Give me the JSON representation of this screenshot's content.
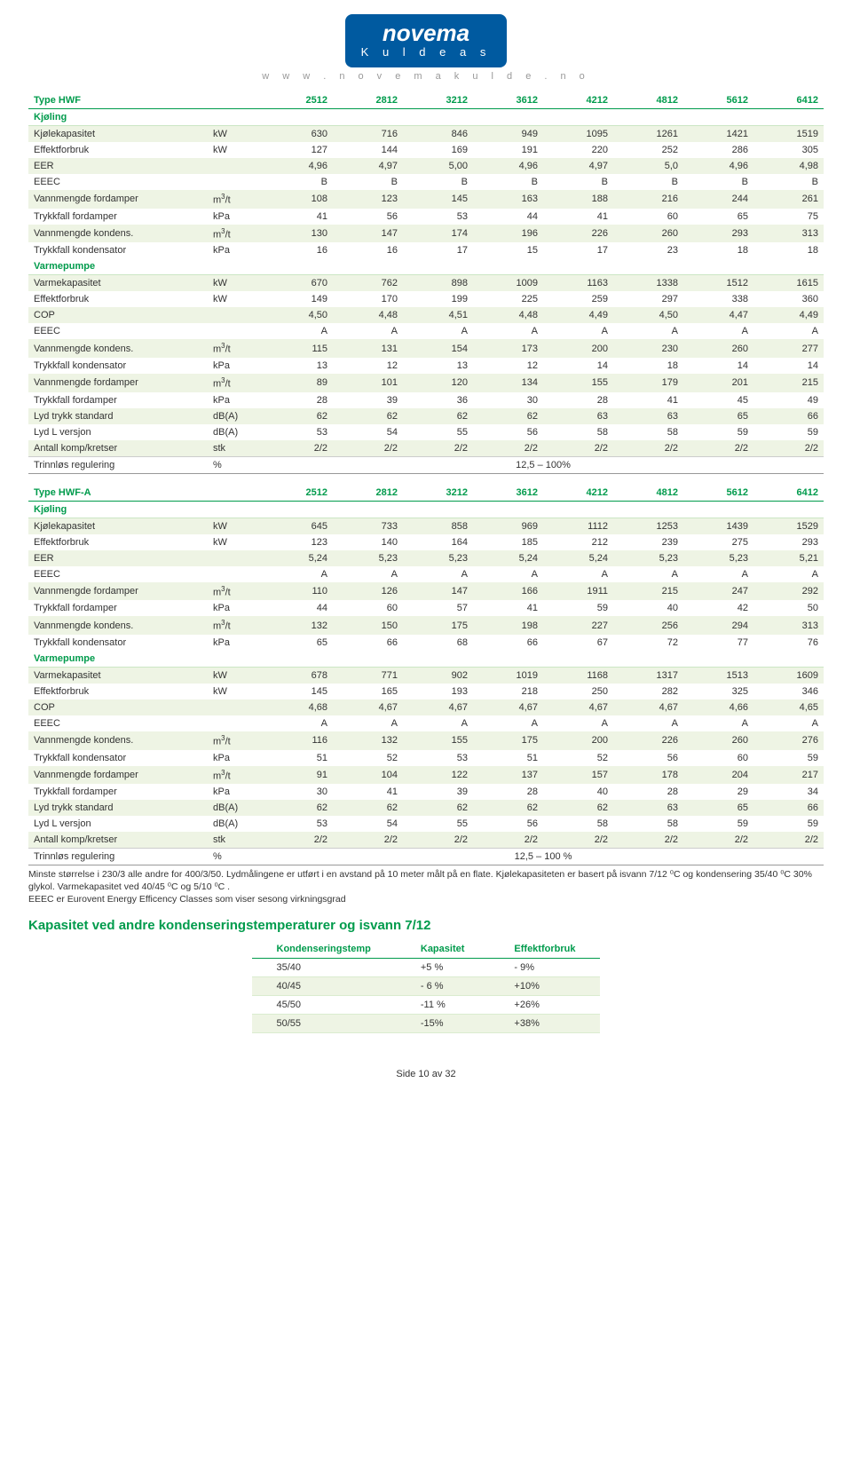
{
  "logo": {
    "top": "novema",
    "bot": "K u l d e a s"
  },
  "site": "w w w . n o v e m a k u l d e . n o",
  "table1": {
    "header": {
      "label": "Type HWF",
      "unit": "",
      "cols": [
        "2512",
        "2812",
        "3212",
        "3612",
        "4212",
        "4812",
        "5612",
        "6412"
      ]
    },
    "sections": [
      {
        "title": "Kjøling",
        "rows": [
          {
            "label": "Kjølekapasitet",
            "unit": "kW",
            "v": [
              "630",
              "716",
              "846",
              "949",
              "1095",
              "1261",
              "1421",
              "1519"
            ]
          },
          {
            "label": "Effektforbruk",
            "unit": "kW",
            "v": [
              "127",
              "144",
              "169",
              "191",
              "220",
              "252",
              "286",
              "305"
            ]
          },
          {
            "label": "EER",
            "unit": "",
            "v": [
              "4,96",
              "4,97",
              "5,00",
              "4,96",
              "4,97",
              "5,0",
              "4,96",
              "4,98"
            ]
          },
          {
            "label": "EEEC",
            "unit": "",
            "v": [
              "B",
              "B",
              "B",
              "B",
              "B",
              "B",
              "B",
              "B"
            ]
          },
          {
            "label": "Vannmengde fordamper",
            "unit": "m³/t",
            "v": [
              "108",
              "123",
              "145",
              "163",
              "188",
              "216",
              "244",
              "261"
            ]
          },
          {
            "label": "Trykkfall fordamper",
            "unit": "kPa",
            "v": [
              "41",
              "56",
              "53",
              "44",
              "41",
              "60",
              "65",
              "75"
            ]
          },
          {
            "label": "Vannmengde kondens.",
            "unit": "m³/t",
            "v": [
              "130",
              "147",
              "174",
              "196",
              "226",
              "260",
              "293",
              "313"
            ]
          },
          {
            "label": "Trykkfall kondensator",
            "unit": "kPa",
            "v": [
              "16",
              "16",
              "17",
              "15",
              "17",
              "23",
              "18",
              "18"
            ]
          }
        ]
      },
      {
        "title": "Varmepumpe",
        "rows": [
          {
            "label": "Varmekapasitet",
            "unit": "kW",
            "v": [
              "670",
              "762",
              "898",
              "1009",
              "1163",
              "1338",
              "1512",
              "1615"
            ]
          },
          {
            "label": "Effektforbruk",
            "unit": "kW",
            "v": [
              "149",
              "170",
              "199",
              "225",
              "259",
              "297",
              "338",
              "360"
            ]
          },
          {
            "label": "COP",
            "unit": "",
            "v": [
              "4,50",
              "4,48",
              "4,51",
              "4,48",
              "4,49",
              "4,50",
              "4,47",
              "4,49"
            ]
          },
          {
            "label": "EEEC",
            "unit": "",
            "v": [
              "A",
              "A",
              "A",
              "A",
              "A",
              "A",
              "A",
              "A"
            ]
          },
          {
            "label": "Vannmengde kondens.",
            "unit": "m³/t",
            "v": [
              "115",
              "131",
              "154",
              "173",
              "200",
              "230",
              "260",
              "277"
            ]
          },
          {
            "label": "Trykkfall kondensator",
            "unit": "kPa",
            "v": [
              "13",
              "12",
              "13",
              "12",
              "14",
              "18",
              "14",
              "14"
            ]
          },
          {
            "label": "Vannmengde fordamper",
            "unit": "m³/t",
            "v": [
              "89",
              "101",
              "120",
              "134",
              "155",
              "179",
              "201",
              "215"
            ]
          },
          {
            "label": "Trykkfall fordamper",
            "unit": "kPa",
            "v": [
              "28",
              "39",
              "36",
              "30",
              "28",
              "41",
              "45",
              "49"
            ]
          },
          {
            "label": "Lyd trykk standard",
            "unit": "dB(A)",
            "v": [
              "62",
              "62",
              "62",
              "62",
              "63",
              "63",
              "65",
              "66"
            ]
          },
          {
            "label": "Lyd L versjon",
            "unit": "dB(A)",
            "v": [
              "53",
              "54",
              "55",
              "56",
              "58",
              "58",
              "59",
              "59"
            ]
          },
          {
            "label": "Antall komp/kretser",
            "unit": "stk",
            "v": [
              "2/2",
              "2/2",
              "2/2",
              "2/2",
              "2/2",
              "2/2",
              "2/2",
              "2/2"
            ]
          }
        ]
      }
    ],
    "trinn": {
      "label": "Trinnløs regulering",
      "unit": "%",
      "span": "12,5 – 100%"
    }
  },
  "table2": {
    "header": {
      "label": "Type HWF-A",
      "unit": "",
      "cols": [
        "2512",
        "2812",
        "3212",
        "3612",
        "4212",
        "4812",
        "5612",
        "6412"
      ]
    },
    "sections": [
      {
        "title": "Kjøling",
        "rows": [
          {
            "label": "Kjølekapasitet",
            "unit": "kW",
            "v": [
              "645",
              "733",
              "858",
              "969",
              "1112",
              "1253",
              "1439",
              "1529"
            ]
          },
          {
            "label": "Effektforbruk",
            "unit": "kW",
            "v": [
              "123",
              "140",
              "164",
              "185",
              "212",
              "239",
              "275",
              "293"
            ]
          },
          {
            "label": "EER",
            "unit": "",
            "v": [
              "5,24",
              "5,23",
              "5,23",
              "5,24",
              "5,24",
              "5,23",
              "5,23",
              "5,21"
            ]
          },
          {
            "label": "EEEC",
            "unit": "",
            "v": [
              "A",
              "A",
              "A",
              "A",
              "A",
              "A",
              "A",
              "A"
            ]
          },
          {
            "label": "Vannmengde fordamper",
            "unit": "m³/t",
            "v": [
              "110",
              "126",
              "147",
              "166",
              "1911",
              "215",
              "247",
              "292"
            ]
          },
          {
            "label": "Trykkfall fordamper",
            "unit": "kPa",
            "v": [
              "44",
              "60",
              "57",
              "41",
              "59",
              "40",
              "42",
              "50"
            ]
          },
          {
            "label": "Vannmengde kondens.",
            "unit": "m³/t",
            "v": [
              "132",
              "150",
              "175",
              "198",
              "227",
              "256",
              "294",
              "313"
            ]
          },
          {
            "label": "Trykkfall kondensator",
            "unit": "kPa",
            "v": [
              "65",
              "66",
              "68",
              "66",
              "67",
              "72",
              "77",
              "76"
            ]
          }
        ]
      },
      {
        "title": "Varmepumpe",
        "rows": [
          {
            "label": "Varmekapasitet",
            "unit": "kW",
            "v": [
              "678",
              "771",
              "902",
              "1019",
              "1168",
              "1317",
              "1513",
              "1609"
            ]
          },
          {
            "label": "Effektforbruk",
            "unit": "kW",
            "v": [
              "145",
              "165",
              "193",
              "218",
              "250",
              "282",
              "325",
              "346"
            ]
          },
          {
            "label": "COP",
            "unit": "",
            "v": [
              "4,68",
              "4,67",
              "4,67",
              "4,67",
              "4,67",
              "4,67",
              "4,66",
              "4,65"
            ]
          },
          {
            "label": "EEEC",
            "unit": "",
            "v": [
              "A",
              "A",
              "A",
              "A",
              "A",
              "A",
              "A",
              "A"
            ]
          },
          {
            "label": "Vannmengde kondens.",
            "unit": "m³/t",
            "v": [
              "116",
              "132",
              "155",
              "175",
              "200",
              "226",
              "260",
              "276"
            ]
          },
          {
            "label": "Trykkfall kondensator",
            "unit": "kPa",
            "v": [
              "51",
              "52",
              "53",
              "51",
              "52",
              "56",
              "60",
              "59"
            ]
          },
          {
            "label": "Vannmengde fordamper",
            "unit": "m³/t",
            "v": [
              "91",
              "104",
              "122",
              "137",
              "157",
              "178",
              "204",
              "217"
            ]
          },
          {
            "label": "Trykkfall fordamper",
            "unit": "kPa",
            "v": [
              "30",
              "41",
              "39",
              "28",
              "40",
              "28",
              "29",
              "34"
            ]
          },
          {
            "label": "Lyd trykk standard",
            "unit": "dB(A)",
            "v": [
              "62",
              "62",
              "62",
              "62",
              "62",
              "63",
              "65",
              "66"
            ]
          },
          {
            "label": "Lyd L versjon",
            "unit": "dB(A)",
            "v": [
              "53",
              "54",
              "55",
              "56",
              "58",
              "58",
              "59",
              "59"
            ]
          },
          {
            "label": "Antall komp/kretser",
            "unit": "stk",
            "v": [
              "2/2",
              "2/2",
              "2/2",
              "2/2",
              "2/2",
              "2/2",
              "2/2",
              "2/2"
            ]
          }
        ]
      }
    ],
    "trinn": {
      "label": "Trinnløs regulering",
      "unit": "%",
      "span": "12,5 – 100 %"
    }
  },
  "footnote": [
    "Minste størrelse i 230/3 alle andre for 400/3/50. Lydmålingene er utført i en avstand på 10 meter målt på en flate. Kjølekapasiteten er basert på isvann 7/12 ⁰C og kondensering 35/40 ⁰C 30% glykol. Varmekapasitet ved 40/45 ⁰C og 5/10 ⁰C .",
    "EEEC er Eurovent Energy Efficency Classes som viser sesong virkningsgrad"
  ],
  "h2": "Kapasitet ved andre kondenseringstemperaturer og isvann 7/12",
  "small": {
    "headers": [
      "Kondenseringstemp",
      "Kapasitet",
      "Effektforbruk"
    ],
    "rows": [
      [
        "35/40",
        "+5 %",
        "- 9%"
      ],
      [
        "40/45",
        "- 6 %",
        "+10%"
      ],
      [
        "45/50",
        "-11 %",
        "+26%"
      ],
      [
        "50/55",
        "-15%",
        "+38%"
      ]
    ]
  },
  "pagenum": "Side 10 av 32"
}
